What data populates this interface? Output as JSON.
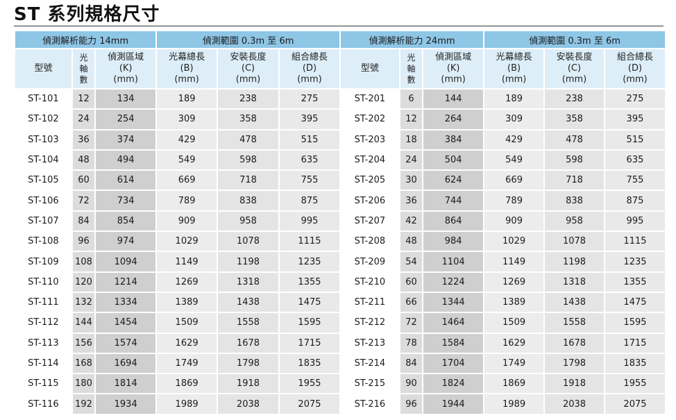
{
  "title": "ST 系列規格尺寸",
  "groups": {
    "left_resolution": "偵測解析能力 14mm",
    "left_range": "偵測範圍 0.3m 至 6m",
    "right_resolution": "偵測解析能力 24mm",
    "right_range": "偵測範圍 0.3m 至 6m"
  },
  "headers": {
    "model": "型號",
    "axes": [
      "光",
      "軸",
      "數"
    ],
    "k": [
      "偵測區域",
      "(K)",
      "(mm)"
    ],
    "b": [
      "光幕總長",
      "(B)",
      "(mm)"
    ],
    "c": [
      "安裝長度",
      "(C)",
      "(mm)"
    ],
    "d": [
      "組合總長",
      "(D)",
      "(mm)"
    ]
  },
  "rows": [
    {
      "l": [
        "ST-101",
        "12",
        "134",
        "189",
        "238",
        "275"
      ],
      "r": [
        "ST-201",
        "6",
        "144",
        "189",
        "238",
        "275"
      ]
    },
    {
      "l": [
        "ST-102",
        "24",
        "254",
        "309",
        "358",
        "395"
      ],
      "r": [
        "ST-202",
        "12",
        "264",
        "309",
        "358",
        "395"
      ]
    },
    {
      "l": [
        "ST-103",
        "36",
        "374",
        "429",
        "478",
        "515"
      ],
      "r": [
        "ST-203",
        "18",
        "384",
        "429",
        "478",
        "515"
      ]
    },
    {
      "l": [
        "ST-104",
        "48",
        "494",
        "549",
        "598",
        "635"
      ],
      "r": [
        "ST-204",
        "24",
        "504",
        "549",
        "598",
        "635"
      ]
    },
    {
      "l": [
        "ST-105",
        "60",
        "614",
        "669",
        "718",
        "755"
      ],
      "r": [
        "ST-205",
        "30",
        "624",
        "669",
        "718",
        "755"
      ]
    },
    {
      "l": [
        "ST-106",
        "72",
        "734",
        "789",
        "838",
        "875"
      ],
      "r": [
        "ST-206",
        "36",
        "744",
        "789",
        "838",
        "875"
      ]
    },
    {
      "l": [
        "ST-107",
        "84",
        "854",
        "909",
        "958",
        "995"
      ],
      "r": [
        "ST-207",
        "42",
        "864",
        "909",
        "958",
        "995"
      ]
    },
    {
      "l": [
        "ST-108",
        "96",
        "974",
        "1029",
        "1078",
        "1115"
      ],
      "r": [
        "ST-208",
        "48",
        "984",
        "1029",
        "1078",
        "1115"
      ]
    },
    {
      "l": [
        "ST-109",
        "108",
        "1094",
        "1149",
        "1198",
        "1235"
      ],
      "r": [
        "ST-209",
        "54",
        "1104",
        "1149",
        "1198",
        "1235"
      ]
    },
    {
      "l": [
        "ST-110",
        "120",
        "1214",
        "1269",
        "1318",
        "1355"
      ],
      "r": [
        "ST-210",
        "60",
        "1224",
        "1269",
        "1318",
        "1355"
      ]
    },
    {
      "l": [
        "ST-111",
        "132",
        "1334",
        "1389",
        "1438",
        "1475"
      ],
      "r": [
        "ST-211",
        "66",
        "1344",
        "1389",
        "1438",
        "1475"
      ]
    },
    {
      "l": [
        "ST-112",
        "144",
        "1454",
        "1509",
        "1558",
        "1595"
      ],
      "r": [
        "ST-212",
        "72",
        "1464",
        "1509",
        "1558",
        "1595"
      ]
    },
    {
      "l": [
        "ST-113",
        "156",
        "1574",
        "1629",
        "1678",
        "1715"
      ],
      "r": [
        "ST-213",
        "78",
        "1584",
        "1629",
        "1678",
        "1715"
      ]
    },
    {
      "l": [
        "ST-114",
        "168",
        "1694",
        "1749",
        "1798",
        "1835"
      ],
      "r": [
        "ST-214",
        "84",
        "1704",
        "1749",
        "1798",
        "1835"
      ]
    },
    {
      "l": [
        "ST-115",
        "180",
        "1814",
        "1869",
        "1918",
        "1955"
      ],
      "r": [
        "ST-215",
        "90",
        "1824",
        "1869",
        "1918",
        "1955"
      ]
    },
    {
      "l": [
        "ST-116",
        "192",
        "1934",
        "1989",
        "2038",
        "2075"
      ],
      "r": [
        "ST-216",
        "96",
        "1944",
        "1989",
        "2038",
        "2075"
      ]
    }
  ]
}
